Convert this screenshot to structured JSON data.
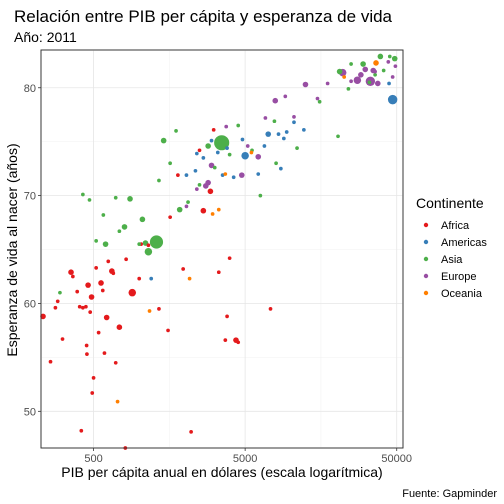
{
  "chart_data": {
    "type": "scatter",
    "title": "Relación entre PIB per cápita y esperanza de vida",
    "subtitle": "Año: 2011",
    "xlabel": "PIB per cápita anual en dólares (escala logarítmica)",
    "ylabel": "Esperanza de vida al nacer (años)",
    "caption": "Fuente: Gapminder",
    "x_scale": "log10",
    "xlim": [
      225,
      55000
    ],
    "ylim": [
      46.6,
      83.5
    ],
    "x_ticks": [
      500,
      5000,
      50000
    ],
    "x_tick_labels": [
      "500",
      "5000",
      "50000"
    ],
    "y_ticks": [
      50,
      60,
      70,
      80
    ],
    "y_tick_labels": [
      "50",
      "60",
      "70",
      "80"
    ],
    "grid": true,
    "legend": {
      "title": "Continente",
      "position": "right",
      "entries": [
        "Africa",
        "Americas",
        "Asia",
        "Europe",
        "Oceania"
      ]
    },
    "colors": {
      "Africa": "#e41a1c",
      "Americas": "#377eb8",
      "Asia": "#4daf4a",
      "Europe": "#984ea3",
      "Oceania": "#ff7f00"
    },
    "point_size_meaning": "population (relative)",
    "series": [
      {
        "name": "Africa",
        "points": [
          {
            "x": 232,
            "y": 58.8,
            "s": 2
          },
          {
            "x": 260,
            "y": 54.6,
            "s": 1
          },
          {
            "x": 280,
            "y": 59.6,
            "s": 1
          },
          {
            "x": 290,
            "y": 60.2,
            "s": 1
          },
          {
            "x": 312,
            "y": 56.7,
            "s": 1
          },
          {
            "x": 355,
            "y": 62.9,
            "s": 2
          },
          {
            "x": 365,
            "y": 62.5,
            "s": 1
          },
          {
            "x": 390,
            "y": 61.1,
            "s": 1
          },
          {
            "x": 405,
            "y": 59.7,
            "s": 1
          },
          {
            "x": 415,
            "y": 48.2,
            "s": 1
          },
          {
            "x": 425,
            "y": 59.6,
            "s": 1
          },
          {
            "x": 445,
            "y": 59.7,
            "s": 1
          },
          {
            "x": 450,
            "y": 56.1,
            "s": 1
          },
          {
            "x": 452,
            "y": 55.3,
            "s": 1
          },
          {
            "x": 460,
            "y": 61.7,
            "s": 2
          },
          {
            "x": 475,
            "y": 59.2,
            "s": 1
          },
          {
            "x": 485,
            "y": 60.6,
            "s": 2
          },
          {
            "x": 490,
            "y": 51.7,
            "s": 1
          },
          {
            "x": 500,
            "y": 53.1,
            "s": 1
          },
          {
            "x": 520,
            "y": 63.3,
            "s": 1
          },
          {
            "x": 540,
            "y": 57.3,
            "s": 1
          },
          {
            "x": 560,
            "y": 61.9,
            "s": 2
          },
          {
            "x": 575,
            "y": 61.2,
            "s": 1
          },
          {
            "x": 590,
            "y": 55.4,
            "s": 1
          },
          {
            "x": 610,
            "y": 58.7,
            "s": 2
          },
          {
            "x": 625,
            "y": 63.9,
            "s": 1
          },
          {
            "x": 660,
            "y": 63.0,
            "s": 2
          },
          {
            "x": 675,
            "y": 62.8,
            "s": 1
          },
          {
            "x": 700,
            "y": 54.5,
            "s": 1
          },
          {
            "x": 740,
            "y": 57.8,
            "s": 2
          },
          {
            "x": 810,
            "y": 46.6,
            "s": 1
          },
          {
            "x": 820,
            "y": 64.1,
            "s": 1
          },
          {
            "x": 900,
            "y": 61.0,
            "s": 3
          },
          {
            "x": 1000,
            "y": 62.3,
            "s": 1
          },
          {
            "x": 1030,
            "y": 65.5,
            "s": 1
          },
          {
            "x": 1150,
            "y": 65.4,
            "s": 1
          },
          {
            "x": 1350,
            "y": 59.5,
            "s": 1
          },
          {
            "x": 1550,
            "y": 57.5,
            "s": 1
          },
          {
            "x": 1600,
            "y": 68.0,
            "s": 1
          },
          {
            "x": 1800,
            "y": 71.9,
            "s": 1
          },
          {
            "x": 1950,
            "y": 63.2,
            "s": 1
          },
          {
            "x": 2200,
            "y": 48.1,
            "s": 1
          },
          {
            "x": 2500,
            "y": 74.2,
            "s": 1
          },
          {
            "x": 2650,
            "y": 68.6,
            "s": 2
          },
          {
            "x": 2950,
            "y": 70.4,
            "s": 2
          },
          {
            "x": 3100,
            "y": 76.1,
            "s": 1
          },
          {
            "x": 3350,
            "y": 62.9,
            "s": 1
          },
          {
            "x": 3700,
            "y": 56.6,
            "s": 1
          },
          {
            "x": 3800,
            "y": 58.8,
            "s": 1
          },
          {
            "x": 3950,
            "y": 64.2,
            "s": 1
          },
          {
            "x": 4350,
            "y": 56.6,
            "s": 2
          },
          {
            "x": 4500,
            "y": 56.4,
            "s": 1
          },
          {
            "x": 7350,
            "y": 59.5,
            "s": 1
          }
        ]
      },
      {
        "name": "Americas",
        "points": [
          {
            "x": 1200,
            "y": 62.3,
            "s": 1
          },
          {
            "x": 2050,
            "y": 71.9,
            "s": 1
          },
          {
            "x": 2350,
            "y": 72.3,
            "s": 1
          },
          {
            "x": 2400,
            "y": 73.9,
            "s": 1
          },
          {
            "x": 2650,
            "y": 73.5,
            "s": 1
          },
          {
            "x": 3000,
            "y": 75.1,
            "s": 1
          },
          {
            "x": 3300,
            "y": 74.0,
            "s": 1
          },
          {
            "x": 3550,
            "y": 71.9,
            "s": 1
          },
          {
            "x": 3800,
            "y": 74.4,
            "s": 1
          },
          {
            "x": 4200,
            "y": 71.7,
            "s": 1
          },
          {
            "x": 4800,
            "y": 75.2,
            "s": 1
          },
          {
            "x": 5000,
            "y": 73.7,
            "s": 3
          },
          {
            "x": 6100,
            "y": 72.0,
            "s": 1
          },
          {
            "x": 6700,
            "y": 74.6,
            "s": 1
          },
          {
            "x": 7100,
            "y": 75.7,
            "s": 2
          },
          {
            "x": 8300,
            "y": 75.7,
            "s": 1
          },
          {
            "x": 8600,
            "y": 72.5,
            "s": 1
          },
          {
            "x": 9000,
            "y": 75.3,
            "s": 1
          },
          {
            "x": 9400,
            "y": 75.9,
            "s": 1
          },
          {
            "x": 10500,
            "y": 76.8,
            "s": 1
          },
          {
            "x": 12200,
            "y": 76.1,
            "s": 1
          },
          {
            "x": 44500,
            "y": 80.4,
            "s": 1
          },
          {
            "x": 47000,
            "y": 78.9,
            "s": 4
          }
        ]
      },
      {
        "name": "Asia",
        "points": [
          {
            "x": 300,
            "y": 61.0,
            "s": 1
          },
          {
            "x": 425,
            "y": 70.1,
            "s": 1
          },
          {
            "x": 470,
            "y": 69.6,
            "s": 1
          },
          {
            "x": 520,
            "y": 65.8,
            "s": 1
          },
          {
            "x": 580,
            "y": 68.2,
            "s": 1
          },
          {
            "x": 600,
            "y": 65.5,
            "s": 2
          },
          {
            "x": 700,
            "y": 69.8,
            "s": 1
          },
          {
            "x": 740,
            "y": 66.7,
            "s": 1
          },
          {
            "x": 800,
            "y": 67.1,
            "s": 2
          },
          {
            "x": 870,
            "y": 69.7,
            "s": 2
          },
          {
            "x": 1000,
            "y": 65.5,
            "s": 1
          },
          {
            "x": 1100,
            "y": 65.6,
            "s": 2
          },
          {
            "x": 1050,
            "y": 67.8,
            "s": 2
          },
          {
            "x": 1150,
            "y": 64.8,
            "s": 3
          },
          {
            "x": 1300,
            "y": 65.7,
            "s": 6
          },
          {
            "x": 1350,
            "y": 71.4,
            "s": 1
          },
          {
            "x": 1450,
            "y": 75.1,
            "s": 2
          },
          {
            "x": 1600,
            "y": 73.0,
            "s": 1
          },
          {
            "x": 1750,
            "y": 76.0,
            "s": 1
          },
          {
            "x": 1850,
            "y": 68.7,
            "s": 2
          },
          {
            "x": 2100,
            "y": 69.4,
            "s": 1
          },
          {
            "x": 2500,
            "y": 71.0,
            "s": 1
          },
          {
            "x": 2850,
            "y": 74.6,
            "s": 2
          },
          {
            "x": 3150,
            "y": 72.6,
            "s": 1
          },
          {
            "x": 3500,
            "y": 74.9,
            "s": 7
          },
          {
            "x": 3950,
            "y": 73.8,
            "s": 1
          },
          {
            "x": 4500,
            "y": 76.5,
            "s": 1
          },
          {
            "x": 5550,
            "y": 74.2,
            "s": 1
          },
          {
            "x": 6300,
            "y": 70.0,
            "s": 1
          },
          {
            "x": 7800,
            "y": 76.9,
            "s": 1
          },
          {
            "x": 8000,
            "y": 73.0,
            "s": 1
          },
          {
            "x": 11000,
            "y": 74.4,
            "s": 1
          },
          {
            "x": 15500,
            "y": 78.7,
            "s": 1
          },
          {
            "x": 20500,
            "y": 75.5,
            "s": 1
          },
          {
            "x": 21000,
            "y": 81.5,
            "s": 2
          },
          {
            "x": 24000,
            "y": 79.9,
            "s": 1
          },
          {
            "x": 25000,
            "y": 82.2,
            "s": 1
          },
          {
            "x": 30000,
            "y": 82.2,
            "s": 2
          },
          {
            "x": 33000,
            "y": 80.5,
            "s": 1
          },
          {
            "x": 36000,
            "y": 81.2,
            "s": 1
          },
          {
            "x": 39000,
            "y": 82.9,
            "s": 2
          },
          {
            "x": 41000,
            "y": 81.6,
            "s": 1
          },
          {
            "x": 45000,
            "y": 82.9,
            "s": 1
          },
          {
            "x": 48500,
            "y": 82.7,
            "s": 2
          }
        ]
      },
      {
        "name": "Europe",
        "points": [
          {
            "x": 2050,
            "y": 69.0,
            "s": 1
          },
          {
            "x": 2400,
            "y": 70.6,
            "s": 1
          },
          {
            "x": 2750,
            "y": 70.9,
            "s": 2
          },
          {
            "x": 2850,
            "y": 71.2,
            "s": 2
          },
          {
            "x": 3000,
            "y": 72.8,
            "s": 2
          },
          {
            "x": 3750,
            "y": 76.4,
            "s": 1
          },
          {
            "x": 4750,
            "y": 71.9,
            "s": 2
          },
          {
            "x": 5200,
            "y": 74.6,
            "s": 1
          },
          {
            "x": 6100,
            "y": 73.6,
            "s": 2
          },
          {
            "x": 6800,
            "y": 77.2,
            "s": 1
          },
          {
            "x": 7900,
            "y": 78.8,
            "s": 2
          },
          {
            "x": 9200,
            "y": 79.2,
            "s": 1
          },
          {
            "x": 10500,
            "y": 77.3,
            "s": 1
          },
          {
            "x": 12500,
            "y": 80.3,
            "s": 2
          },
          {
            "x": 15000,
            "y": 79.0,
            "s": 1
          },
          {
            "x": 17500,
            "y": 80.4,
            "s": 1
          },
          {
            "x": 22000,
            "y": 81.4,
            "s": 3
          },
          {
            "x": 25000,
            "y": 80.6,
            "s": 1
          },
          {
            "x": 27500,
            "y": 80.7,
            "s": 3
          },
          {
            "x": 29000,
            "y": 81.2,
            "s": 2
          },
          {
            "x": 31000,
            "y": 81.7,
            "s": 2
          },
          {
            "x": 33500,
            "y": 80.6,
            "s": 4
          },
          {
            "x": 35000,
            "y": 81.6,
            "s": 2
          },
          {
            "x": 36000,
            "y": 81.5,
            "s": 1
          },
          {
            "x": 37500,
            "y": 80.4,
            "s": 2
          },
          {
            "x": 44000,
            "y": 82.4,
            "s": 1
          },
          {
            "x": 47000,
            "y": 81.0,
            "s": 1
          },
          {
            "x": 49000,
            "y": 82.0,
            "s": 1
          }
        ]
      },
      {
        "name": "Oceania",
        "points": [
          {
            "x": 720,
            "y": 50.9,
            "s": 1
          },
          {
            "x": 1170,
            "y": 59.3,
            "s": 1
          },
          {
            "x": 2150,
            "y": 62.3,
            "s": 1
          },
          {
            "x": 3050,
            "y": 68.3,
            "s": 1
          },
          {
            "x": 3350,
            "y": 68.7,
            "s": 1
          },
          {
            "x": 3700,
            "y": 72.0,
            "s": 1
          },
          {
            "x": 5500,
            "y": 74.0,
            "s": 1
          },
          {
            "x": 22500,
            "y": 81.0,
            "s": 1
          },
          {
            "x": 36500,
            "y": 82.3,
            "s": 2
          }
        ]
      }
    ]
  }
}
